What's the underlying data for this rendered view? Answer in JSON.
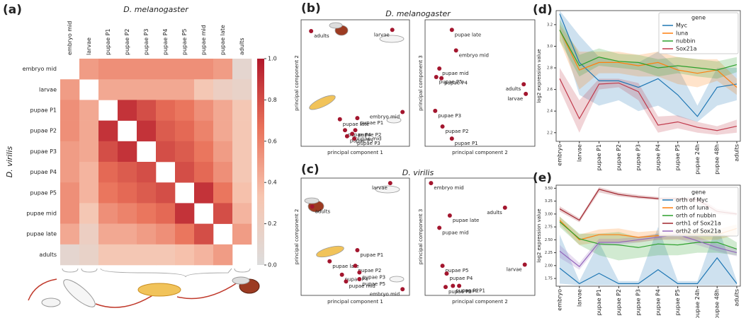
{
  "chart_data": [
    {
      "type": "heatmap",
      "panel": "(a)",
      "title": "D. melanogaster",
      "ylabel": "D. virilis",
      "xcategories": [
        "embryo mid",
        "larvae",
        "pupae P1",
        "pupae P2",
        "pupae P3",
        "pupae P4",
        "pupae P5",
        "pupae mid",
        "pupae late",
        "adults"
      ],
      "ycategories": [
        "embryo mid",
        "larvae",
        "pupae P1",
        "pupae P2",
        "pupae P3",
        "pupae P4",
        "pupae P5",
        "pupae mid",
        "pupae late",
        "adults"
      ],
      "values": [
        [
          null,
          0.5,
          0.55,
          0.55,
          0.55,
          0.55,
          0.55,
          0.55,
          0.5,
          0.1
        ],
        [
          0.5,
          null,
          0.45,
          0.45,
          0.45,
          0.45,
          0.45,
          0.3,
          0.2,
          0.15
        ],
        [
          0.55,
          0.45,
          null,
          0.9,
          0.8,
          0.7,
          0.65,
          0.55,
          0.45,
          0.3
        ],
        [
          0.55,
          0.45,
          0.9,
          null,
          0.9,
          0.75,
          0.7,
          0.6,
          0.45,
          0.3
        ],
        [
          0.5,
          0.45,
          0.8,
          0.9,
          null,
          0.8,
          0.75,
          0.65,
          0.5,
          0.3
        ],
        [
          0.5,
          0.4,
          0.7,
          0.75,
          0.8,
          null,
          0.8,
          0.7,
          0.55,
          0.3
        ],
        [
          0.55,
          0.4,
          0.65,
          0.7,
          0.75,
          0.8,
          null,
          0.9,
          0.65,
          0.35
        ],
        [
          0.55,
          0.3,
          0.55,
          0.6,
          0.65,
          0.7,
          0.9,
          null,
          0.8,
          0.4
        ],
        [
          0.45,
          0.2,
          0.45,
          0.45,
          0.5,
          0.55,
          0.65,
          0.8,
          null,
          0.5
        ],
        [
          0.1,
          0.15,
          0.3,
          0.3,
          0.3,
          0.3,
          0.35,
          0.4,
          0.5,
          null
        ]
      ],
      "clim": [
        0,
        1
      ],
      "colorscale": [
        "#dcdcdc",
        "#f7c5b0",
        "#e9725a",
        "#b2182b"
      ],
      "colorbar_ticks": [
        {
          "value": 0,
          "label": "0.0"
        },
        0.2,
        0.4,
        0.6,
        0.8,
        {
          "value": 1,
          "label": "1.0"
        }
      ]
    },
    {
      "type": "scatter",
      "panel": "(b)",
      "title": "D. melanogaster",
      "color": "#a3162e",
      "subplots": [
        {
          "xlabel": "principal component 1",
          "ylabel": "principal component 2",
          "xlim": [
            0,
            100
          ],
          "ylim": [
            0,
            100
          ],
          "labels": [
            "adults",
            "larvae",
            "pupae late",
            "pupae P1",
            "embryo mid",
            "pupae P4",
            "pupae P2",
            "pupae mid",
            "pupae P5",
            "pupae P3"
          ],
          "x": [
            7,
            86,
            35,
            52,
            96,
            40,
            50,
            47,
            42,
            49
          ],
          "y": [
            93,
            94,
            20,
            21,
            26,
            11,
            11,
            8,
            6,
            4
          ]
        },
        {
          "xlabel": "principal component 2",
          "ylabel": "principal component 3",
          "xlim": [
            0,
            100
          ],
          "ylim": [
            0,
            100
          ],
          "labels": [
            "pupae late",
            "embryo mid",
            "pupae mid",
            "pupae P5",
            "pupae P4",
            "adults",
            "larvae",
            "pupae P3",
            "pupae P2",
            "pupae P1"
          ],
          "x": [
            23,
            27,
            11,
            8,
            13,
            92,
            94,
            7,
            14,
            23
          ],
          "y": [
            94,
            77,
            62,
            55,
            54,
            49,
            41,
            27,
            14,
            4
          ]
        }
      ]
    },
    {
      "type": "scatter",
      "panel": "(c)",
      "title": "D. virilis",
      "color": "#a3162e",
      "subplots": [
        {
          "xlabel": "principal component 1",
          "ylabel": "principal component 2",
          "xlim": [
            0,
            100
          ],
          "ylim": [
            0,
            100
          ],
          "labels": [
            "adults",
            "larvae",
            "pupae P1",
            "pupae late",
            "pupae P2",
            "pupae P4",
            "pupae P3",
            "pupae P5",
            "pupae mid",
            "embryo mid"
          ],
          "x": [
            8,
            84,
            52,
            25,
            50,
            37,
            54,
            54,
            41,
            96
          ],
          "y": [
            77,
            98,
            38,
            28,
            24,
            16,
            18,
            12,
            10,
            3
          ]
        },
        {
          "xlabel": "principal component 2",
          "ylabel": "principal component 3",
          "xlim": [
            0,
            100
          ],
          "ylim": [
            0,
            100
          ],
          "labels": [
            "embryo mid",
            "adults",
            "pupae late",
            "pupae mid",
            "larvae",
            "pupae P5",
            "pupae P4",
            "pupae P1",
            "pupae P3",
            "pupae P2"
          ],
          "x": [
            3,
            74,
            21,
            11,
            93,
            14,
            18,
            30,
            17,
            24
          ],
          "y": [
            98,
            76,
            69,
            58,
            25,
            24,
            17,
            6,
            5,
            6
          ]
        }
      ]
    },
    {
      "type": "line",
      "panel": "(d)",
      "ylabel": "log2 expression value",
      "legend_title": "gene",
      "legend": "upper right",
      "grid": false,
      "categories": [
        "embryo",
        "larvae",
        "pupae P1",
        "pupae P2",
        "pupae P3",
        "pupae P4",
        "pupae P5",
        "pupae 24h",
        "pupae 48h",
        "adults"
      ],
      "ylim": [
        2.12,
        3.33
      ],
      "yticks": [
        2.2,
        2.4,
        2.6,
        2.8,
        {
          "value": 3,
          "label": "3.0"
        },
        3.2
      ],
      "series": [
        {
          "name": "Myc",
          "color": "#1f77b4",
          "values": [
            3.3,
            2.85,
            2.68,
            2.68,
            2.62,
            2.7,
            2.55,
            2.35,
            2.62,
            2.65
          ],
          "lower": [
            3.15,
            2.55,
            2.45,
            2.5,
            2.4,
            2.45,
            2.35,
            2.3,
            2.45,
            2.5
          ],
          "upper": [
            3.33,
            3.1,
            2.9,
            2.85,
            2.85,
            2.95,
            2.8,
            2.45,
            2.8,
            2.8
          ]
        },
        {
          "name": "luna",
          "color": "#ff7f0e",
          "values": [
            3.15,
            2.78,
            2.85,
            2.85,
            2.82,
            2.85,
            2.78,
            2.75,
            2.78,
            2.62
          ],
          "lower": [
            3.05,
            2.6,
            2.75,
            2.75,
            2.72,
            2.72,
            2.65,
            2.62,
            2.68,
            2.55
          ],
          "upper": [
            3.2,
            2.95,
            2.95,
            2.95,
            2.92,
            2.95,
            2.9,
            2.88,
            2.88,
            2.7
          ]
        },
        {
          "name": "nubbin",
          "color": "#2ca02c",
          "values": [
            3.15,
            2.82,
            2.9,
            2.86,
            2.85,
            2.8,
            2.82,
            2.8,
            2.78,
            2.83
          ],
          "lower": [
            3.05,
            2.72,
            2.82,
            2.8,
            2.78,
            2.72,
            2.75,
            2.72,
            2.7,
            2.76
          ],
          "upper": [
            3.25,
            2.92,
            2.98,
            2.93,
            2.92,
            2.88,
            2.9,
            2.88,
            2.86,
            2.9
          ]
        },
        {
          "name": "Sox21a",
          "color": "#c0394b",
          "values": [
            2.7,
            2.33,
            2.65,
            2.66,
            2.58,
            2.27,
            2.3,
            2.25,
            2.22,
            2.26
          ],
          "lower": [
            2.6,
            2.2,
            2.6,
            2.62,
            2.5,
            2.2,
            2.24,
            2.2,
            2.18,
            2.2
          ],
          "upper": [
            2.8,
            2.5,
            2.7,
            2.7,
            2.66,
            2.35,
            2.36,
            2.3,
            2.26,
            2.32
          ]
        }
      ]
    },
    {
      "type": "line",
      "panel": "(e)",
      "ylabel": "log2 expression value",
      "legend_title": "gene",
      "legend": "upper right",
      "grid": false,
      "categories": [
        "embryo",
        "larvae",
        "pupae P1",
        "pupae P2",
        "pupae P3",
        "pupae P4",
        "pupae P5",
        "pupae 24h",
        "pupae 48h",
        "adults"
      ],
      "ylim": [
        1.6,
        3.56
      ],
      "yticks": [
        1.75,
        {
          "value": 2,
          "label": "2.00"
        },
        2.25,
        {
          "value": 2.5,
          "label": "2.50"
        },
        2.75,
        {
          "value": 3,
          "label": "3.00"
        },
        3.25,
        {
          "value": 3.5,
          "label": "3.50"
        }
      ],
      "series": [
        {
          "name": "orth of Myc",
          "color": "#1f77b4",
          "values": [
            1.95,
            1.65,
            1.85,
            1.65,
            1.65,
            1.92,
            1.65,
            1.65,
            2.15,
            1.65
          ],
          "lower": [
            1.65,
            1.62,
            1.62,
            1.62,
            1.62,
            1.62,
            1.62,
            1.62,
            1.62,
            1.62
          ],
          "upper": [
            2.6,
            1.7,
            2.45,
            1.7,
            1.7,
            2.75,
            1.7,
            1.7,
            2.8,
            1.7
          ]
        },
        {
          "name": "orth of luna",
          "color": "#ff7f0e",
          "values": [
            2.88,
            2.5,
            2.6,
            2.6,
            2.55,
            2.58,
            2.6,
            2.6,
            2.6,
            2.72
          ],
          "lower": [
            2.8,
            2.4,
            2.45,
            2.45,
            2.45,
            2.5,
            2.5,
            2.5,
            2.5,
            2.6
          ],
          "upper": [
            2.95,
            2.6,
            2.7,
            2.72,
            2.65,
            2.68,
            2.7,
            2.7,
            2.7,
            2.8
          ]
        },
        {
          "name": "orth of nubbin",
          "color": "#2ca02c",
          "values": [
            2.85,
            2.52,
            2.42,
            2.4,
            2.35,
            2.42,
            2.4,
            2.45,
            2.45,
            2.32
          ],
          "lower": [
            2.75,
            2.4,
            2.2,
            2.1,
            2.15,
            2.2,
            2.2,
            2.25,
            2.25,
            2.2
          ],
          "upper": [
            2.95,
            2.62,
            2.62,
            2.65,
            2.55,
            2.62,
            2.6,
            2.65,
            2.68,
            2.45
          ]
        },
        {
          "name": "orth1 of Sox21a",
          "color": "#a0242c",
          "values": [
            3.1,
            2.88,
            3.48,
            3.38,
            3.33,
            3.3,
            3.3,
            3.28,
            3.05,
            3.0
          ],
          "lower": [
            3.05,
            2.84,
            3.42,
            3.34,
            3.3,
            3.27,
            3.27,
            3.22,
            3.0,
            2.97
          ],
          "upper": [
            3.15,
            2.92,
            3.52,
            3.42,
            3.37,
            3.33,
            3.33,
            3.33,
            3.1,
            3.03
          ]
        },
        {
          "name": "orth2 of Sox21a",
          "color": "#9467bd",
          "values": [
            2.28,
            1.98,
            2.45,
            2.45,
            2.5,
            2.55,
            2.6,
            2.48,
            2.35,
            2.25
          ],
          "lower": [
            2.15,
            1.92,
            2.38,
            2.4,
            2.45,
            2.5,
            2.52,
            2.4,
            2.28,
            2.18
          ],
          "upper": [
            2.4,
            2.05,
            2.52,
            2.52,
            2.56,
            2.62,
            2.68,
            2.56,
            2.42,
            2.32
          ]
        }
      ]
    }
  ]
}
